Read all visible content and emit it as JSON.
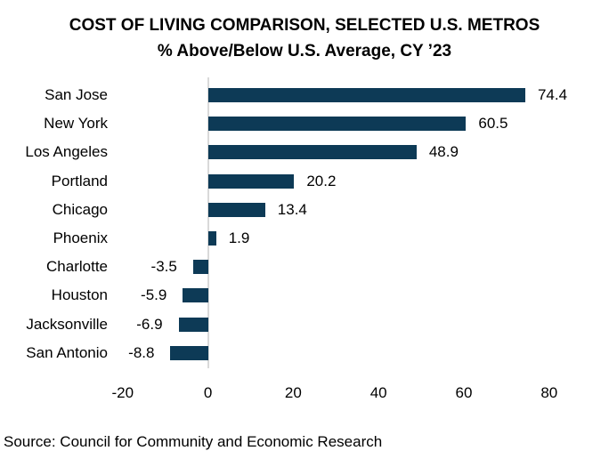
{
  "source_note": "Source: Council for Community and Economic Research",
  "chart_data": {
    "type": "bar",
    "orientation": "horizontal",
    "title": "COST OF LIVING COMPARISON, SELECTED U.S. METROS",
    "subtitle": "% Above/Below U.S. Average, CY ’23",
    "categories": [
      "San Jose",
      "New York",
      "Los Angeles",
      "Portland",
      "Chicago",
      "Phoenix",
      "Charlotte",
      "Houston",
      "Jacksonville",
      "San Antonio"
    ],
    "values": [
      74.4,
      60.5,
      48.9,
      20.2,
      13.4,
      1.9,
      -3.5,
      -5.9,
      -6.9,
      -8.8
    ],
    "data_labels": [
      "74.4",
      "60.5",
      "48.9",
      "20.2",
      "13.4",
      "1.9",
      "-3.5",
      "-5.9",
      "-6.9",
      "-8.8"
    ],
    "xlabel": "",
    "ylabel": "",
    "xlim": [
      -20,
      80
    ],
    "xticks": [
      -20,
      0,
      20,
      40,
      60,
      80
    ],
    "grid": false,
    "legend": false,
    "bar_color": "#0d3a56",
    "axis_line_color": "#d9d9d9",
    "text_color": "#000000"
  }
}
